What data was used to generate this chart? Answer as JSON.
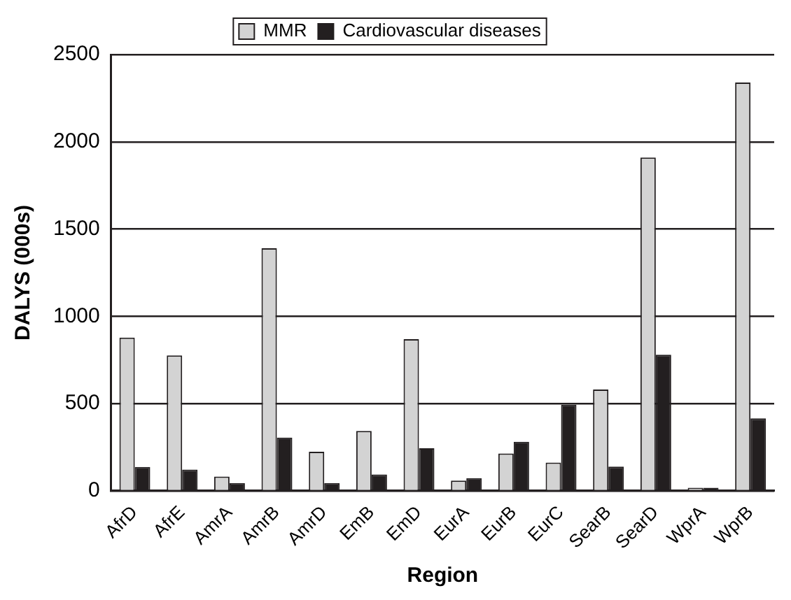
{
  "chart_data": {
    "type": "bar",
    "xlabel": "Region",
    "ylabel": "DALYS (000s)",
    "categories": [
      "AfrD",
      "AfrE",
      "AmrA",
      "AmrB",
      "AmrD",
      "EmB",
      "EmD",
      "EurA",
      "EurB",
      "EurC",
      "SearB",
      "SearD",
      "WprA",
      "WprB"
    ],
    "series": [
      {
        "name": "MMR",
        "color": "#d3d3d3",
        "values": [
          878,
          776,
          81,
          1390,
          224,
          343,
          869,
          58,
          214,
          162,
          580,
          1910,
          17,
          2340
        ]
      },
      {
        "name": "Cardiovascular diseases",
        "color": "#231f20",
        "values": [
          137,
          122,
          44,
          305,
          44,
          93,
          244,
          72,
          281,
          493,
          139,
          780,
          17,
          415
        ]
      }
    ],
    "ylim": [
      0,
      2500
    ],
    "yticks": [
      0,
      500,
      1000,
      1500,
      2000,
      2500
    ],
    "grid": "y",
    "legend": "top"
  }
}
